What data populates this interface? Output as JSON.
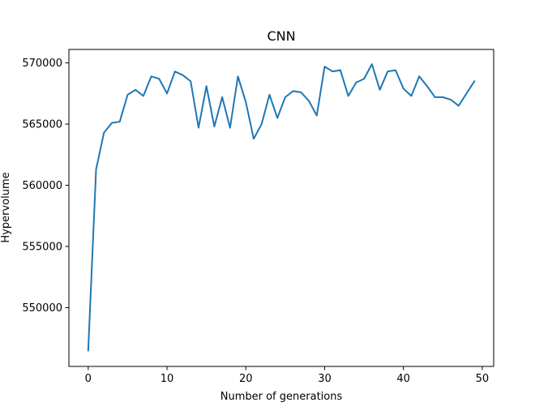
{
  "chart_data": {
    "type": "line",
    "title": "CNN",
    "xlabel": "Number of generations",
    "ylabel": "Hypervolume",
    "xlim": [
      -2.45,
      51.45
    ],
    "ylim": [
      545200,
      571100
    ],
    "xticks": [
      0,
      10,
      20,
      30,
      40,
      50
    ],
    "yticks": [
      550000,
      555000,
      560000,
      565000,
      570000
    ],
    "grid": false,
    "line_color": "#1f77b4",
    "series": [
      {
        "x": [
          0,
          1,
          2,
          3,
          4,
          5,
          6,
          7,
          8,
          9,
          10,
          11,
          12,
          13,
          14,
          15,
          16,
          17,
          18,
          19,
          20,
          21,
          22,
          23,
          24,
          25,
          26,
          27,
          28,
          29,
          30,
          31,
          32,
          33,
          34,
          35,
          36,
          37,
          38,
          39,
          40,
          41,
          42,
          43,
          44,
          45,
          46,
          47,
          48,
          49
        ],
        "values": [
          546500,
          561300,
          564300,
          565100,
          565200,
          567400,
          567800,
          567300,
          568900,
          568700,
          567500,
          569300,
          569000,
          568500,
          564700,
          568100,
          564800,
          567200,
          564700,
          568900,
          566800,
          563800,
          565000,
          567400,
          565500,
          567200,
          567700,
          567600,
          566900,
          565700,
          569700,
          569300,
          569400,
          567300,
          568400,
          568700,
          569900,
          567800,
          569300,
          569400,
          567900,
          567300,
          568900,
          568100,
          567200,
          567200,
          567000,
          566500,
          567500,
          568500
        ]
      }
    ]
  }
}
